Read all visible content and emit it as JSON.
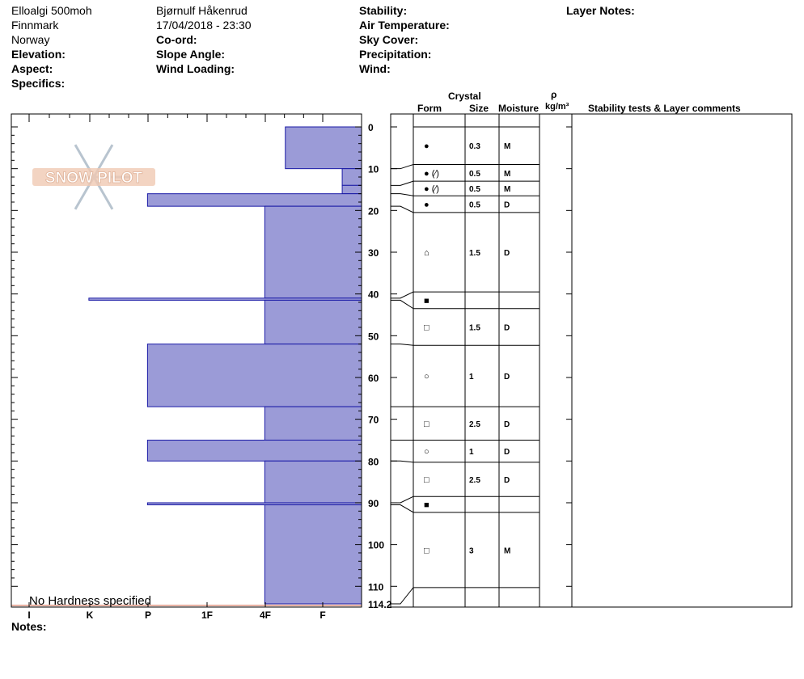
{
  "header": {
    "location": "Elloalgi 500moh",
    "region": "Finnmark",
    "country": "Norway",
    "elevation_label": "Elevation:",
    "aspect_label": "Aspect:",
    "specifics_label": "Specifics:",
    "observer": "Bjørnulf Håkenrud",
    "datetime": "17/04/2018 - 23:30",
    "coord_label": "Co-ord:",
    "slope_label": "Slope Angle:",
    "wind_loading_label": "Wind Loading:",
    "stability_label": "Stability:",
    "air_temp_label": "Air Temperature:",
    "sky_cover_label": "Sky Cover:",
    "precip_label": "Precipitation:",
    "wind_label": "Wind:",
    "layer_notes_label": "Layer Notes:"
  },
  "columns": {
    "crystal": "Crystal",
    "form": "Form",
    "size": "Size",
    "moisture": "Moisture",
    "rho": "ρ",
    "density_unit": "kg/m³",
    "comments": "Stability tests & Layer comments"
  },
  "footer": {
    "notes_label": "Notes:",
    "no_hardness": "No Hardness specified"
  },
  "watermark": "SNOW PILOT",
  "colors": {
    "layer_fill": "#9b9bd7",
    "layer_stroke": "#1a1aa6"
  },
  "chart_data": {
    "type": "bar",
    "orientation": "horizontal",
    "depth_axis": {
      "ylim": [
        0,
        114.2
      ],
      "ticks": [
        0,
        10,
        20,
        30,
        40,
        50,
        60,
        70,
        80,
        90,
        100,
        110
      ],
      "tick_labels": [
        "0",
        "10",
        "20",
        "30",
        "40",
        "50",
        "60",
        "70",
        "80",
        "90",
        "100",
        "110",
        "114.2"
      ],
      "end_label": "114.2"
    },
    "hardness_axis": {
      "categories": [
        "I",
        "K",
        "P",
        "1F",
        "4F",
        "F"
      ]
    },
    "layers": [
      {
        "top": 0,
        "bottom": 10,
        "hardness": 1.3
      },
      {
        "top": 10,
        "bottom": 14,
        "hardness": 0.33
      },
      {
        "top": 14,
        "bottom": 16,
        "hardness": 0.33
      },
      {
        "top": 16,
        "bottom": 19,
        "hardness": 3.65
      },
      {
        "top": 19,
        "bottom": 41,
        "hardness": 1.65
      },
      {
        "top": 41,
        "bottom": 41.5,
        "hardness": 4.65
      },
      {
        "top": 41.5,
        "bottom": 52,
        "hardness": 1.65
      },
      {
        "top": 52,
        "bottom": 67,
        "hardness": 3.65
      },
      {
        "top": 67,
        "bottom": 75,
        "hardness": 1.65
      },
      {
        "top": 75,
        "bottom": 80,
        "hardness": 3.65
      },
      {
        "top": 80,
        "bottom": 90,
        "hardness": 1.65
      },
      {
        "top": 90,
        "bottom": 90.5,
        "hardness": 3.65
      },
      {
        "top": 90.5,
        "bottom": 114.2,
        "hardness": 1.65
      }
    ],
    "table_rows": [
      {
        "top": 0,
        "bottom": 9,
        "form": "●",
        "size": "0.3",
        "moisture": "M",
        "link_depth": 10
      },
      {
        "top": 9,
        "bottom": 13,
        "form": "● (⁄)",
        "size": "0.5",
        "moisture": "M",
        "link_depth": 14
      },
      {
        "top": 13,
        "bottom": 16.5,
        "form": "● (⁄)",
        "size": "0.5",
        "moisture": "M",
        "link_depth": 16
      },
      {
        "top": 16.5,
        "bottom": 20.5,
        "form": "●",
        "size": "0.5",
        "moisture": "D",
        "link_depth": 19
      },
      {
        "top": 20.5,
        "bottom": 39.5,
        "form": "⌂",
        "size": "1.5",
        "moisture": "D",
        "link_depth": 41
      },
      {
        "top": 39.5,
        "bottom": 43.5,
        "form": "■",
        "size": "",
        "moisture": "",
        "link_depth": 41.5
      },
      {
        "top": 43.5,
        "bottom": 52.3,
        "form": "□",
        "size": "1.5",
        "moisture": "D",
        "link_depth": 52
      },
      {
        "top": 52.3,
        "bottom": 67,
        "form": "○",
        "size": "1",
        "moisture": "D",
        "link_depth": 67
      },
      {
        "top": 67,
        "bottom": 75,
        "form": "□",
        "size": "2.5",
        "moisture": "D",
        "link_depth": 75
      },
      {
        "top": 75,
        "bottom": 80.3,
        "form": "○",
        "size": "1",
        "moisture": "D",
        "link_depth": 80
      },
      {
        "top": 80.3,
        "bottom": 88.5,
        "form": "□",
        "size": "2.5",
        "moisture": "D",
        "link_depth": 90
      },
      {
        "top": 88.5,
        "bottom": 92.3,
        "form": "■",
        "size": "",
        "moisture": "",
        "link_depth": 90.5
      },
      {
        "top": 92.3,
        "bottom": 110.3,
        "form": "□",
        "size": "3",
        "moisture": "M",
        "link_depth": 114.2
      }
    ]
  }
}
